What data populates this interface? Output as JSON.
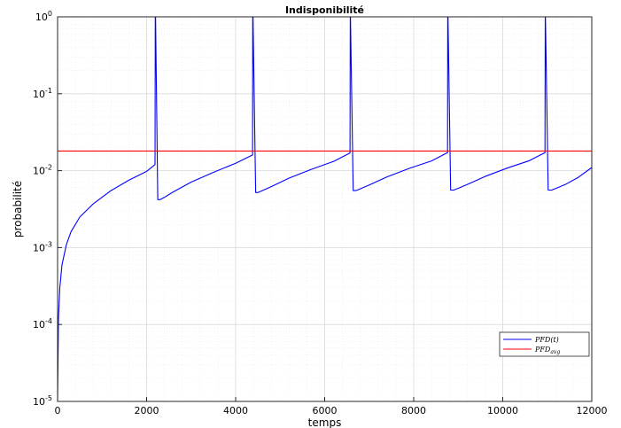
{
  "chart_data": {
    "type": "line",
    "title": "Indisponibilité",
    "xlabel": "temps",
    "ylabel": "probabilité",
    "xlim": [
      0,
      12000
    ],
    "ylim": [
      1e-05,
      1
    ],
    "yscale": "log",
    "grid": true,
    "minor_grid": true,
    "legend_position": "bottom-right",
    "x_ticks": [
      {
        "value": 0,
        "label": "0"
      },
      {
        "value": 2000,
        "label": "2000"
      },
      {
        "value": 4000,
        "label": "4000"
      },
      {
        "value": 6000,
        "label": "6000"
      },
      {
        "value": 8000,
        "label": "8000"
      },
      {
        "value": 10000,
        "label": "10000"
      },
      {
        "value": 12000,
        "label": "12000"
      }
    ],
    "y_ticks": [
      {
        "value": 1,
        "base": "10",
        "exp": "0"
      },
      {
        "value": 0.1,
        "base": "10",
        "exp": "-1"
      },
      {
        "value": 0.01,
        "base": "10",
        "exp": "-2"
      },
      {
        "value": 0.001,
        "base": "10",
        "exp": "-3"
      },
      {
        "value": 0.0001,
        "base": "10",
        "exp": "-4"
      },
      {
        "value": 1e-05,
        "base": "10",
        "exp": "-5"
      }
    ],
    "series": [
      {
        "name": "PFD(t)",
        "legend_label": "PFD(t)",
        "color": "#0000ff",
        "x": [
          0,
          20,
          50,
          100,
          200,
          300,
          500,
          800,
          1200,
          1600,
          2000,
          2190,
          2195,
          2200,
          2250,
          2300,
          2400,
          2600,
          3000,
          3500,
          4000,
          4380,
          4385,
          4390,
          4450,
          4500,
          4600,
          4800,
          5200,
          5700,
          6200,
          6570,
          6575,
          6580,
          6640,
          6700,
          6800,
          7000,
          7400,
          7900,
          8400,
          8760,
          8765,
          8770,
          8830,
          8900,
          9000,
          9200,
          9600,
          10100,
          10600,
          10950,
          10955,
          10960,
          11020,
          11100,
          11200,
          11400,
          11700,
          12000
        ],
        "values": [
          1e-05,
          0.00012,
          0.0003,
          0.0006,
          0.0011,
          0.0016,
          0.0025,
          0.0037,
          0.0055,
          0.0075,
          0.0098,
          0.012,
          1,
          1,
          0.0042,
          0.0042,
          0.0045,
          0.0053,
          0.0071,
          0.0095,
          0.0125,
          0.016,
          1,
          1,
          0.0052,
          0.0052,
          0.0055,
          0.0062,
          0.008,
          0.0104,
          0.0132,
          0.017,
          1,
          1,
          0.0055,
          0.0055,
          0.0058,
          0.0065,
          0.0083,
          0.0107,
          0.0134,
          0.0172,
          1,
          1,
          0.0056,
          0.0056,
          0.0059,
          0.0066,
          0.0084,
          0.0108,
          0.0135,
          0.0172,
          1,
          1,
          0.0056,
          0.0056,
          0.0059,
          0.0066,
          0.0082,
          0.011
        ]
      },
      {
        "name": "PFD_avg",
        "legend_label": "PFD",
        "legend_sub": "avg",
        "color": "#ff0000",
        "x": [
          0,
          12000
        ],
        "values": [
          0.018,
          0.018
        ]
      }
    ]
  }
}
